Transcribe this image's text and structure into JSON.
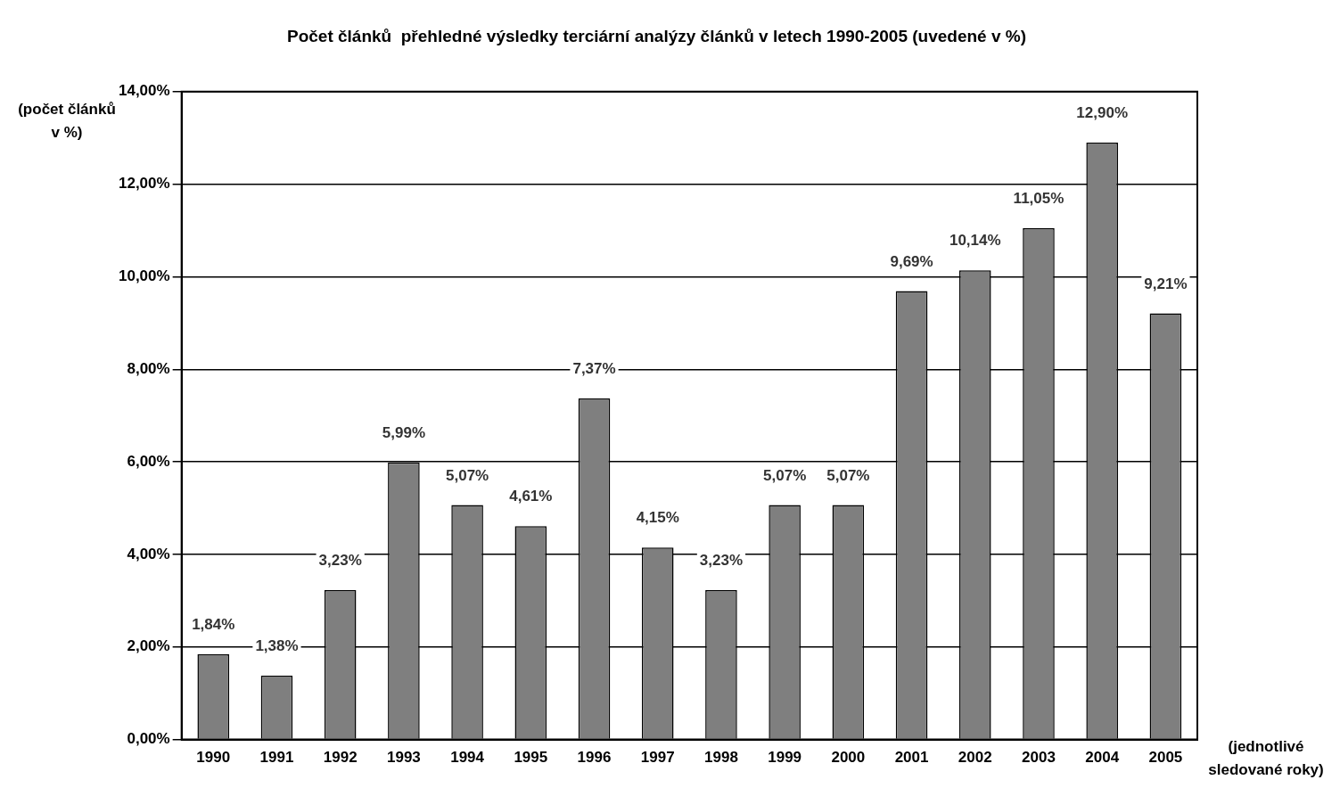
{
  "chart_data": {
    "type": "bar",
    "title": "Počet článků  přehledné výsledky terciární analýzy článků v letech 1990-2005 (uvedené v %)",
    "ylabel": "(počet článků v %)",
    "xlabel": "(jednotlivé sledované roky)",
    "categories": [
      "1990",
      "1991",
      "1992",
      "1993",
      "1994",
      "1995",
      "1996",
      "1997",
      "1998",
      "1999",
      "2000",
      "2001",
      "2002",
      "2003",
      "2004",
      "2005"
    ],
    "values": [
      1.84,
      1.38,
      3.23,
      5.99,
      5.07,
      4.61,
      7.37,
      4.15,
      3.23,
      5.07,
      5.07,
      9.69,
      10.14,
      11.05,
      12.9,
      9.21
    ],
    "value_labels": [
      "1,84%",
      "1,38%",
      "3,23%",
      "5,99%",
      "5,07%",
      "4,61%",
      "7,37%",
      "4,15%",
      "3,23%",
      "5,07%",
      "5,07%",
      "9,69%",
      "10,14%",
      "11,05%",
      "12,90%",
      "9,21%"
    ],
    "color": "#7f7f7f",
    "ylim": [
      0,
      14
    ],
    "yticks": [
      {
        "value": 0,
        "label": "0,00%"
      },
      {
        "value": 2,
        "label": "2,00%"
      },
      {
        "value": 4,
        "label": "4,00%"
      },
      {
        "value": 6,
        "label": "6,00%"
      },
      {
        "value": 8,
        "label": "8,00%"
      },
      {
        "value": 10,
        "label": "10,00%"
      },
      {
        "value": 12,
        "label": "12,00%"
      },
      {
        "value": 14,
        "label": "14,00%"
      }
    ],
    "grid": "y",
    "legend": false
  }
}
